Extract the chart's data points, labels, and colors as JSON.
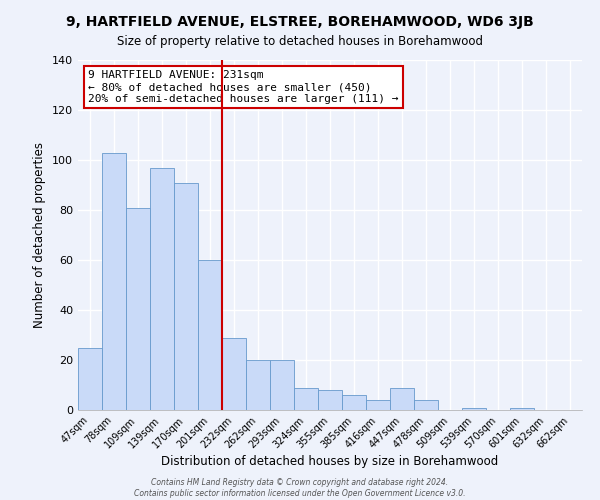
{
  "title": "9, HARTFIELD AVENUE, ELSTREE, BOREHAMWOOD, WD6 3JB",
  "subtitle": "Size of property relative to detached houses in Borehamwood",
  "xlabel": "Distribution of detached houses by size in Borehamwood",
  "ylabel": "Number of detached properties",
  "bar_labels": [
    "47sqm",
    "78sqm",
    "109sqm",
    "139sqm",
    "170sqm",
    "201sqm",
    "232sqm",
    "262sqm",
    "293sqm",
    "324sqm",
    "355sqm",
    "385sqm",
    "416sqm",
    "447sqm",
    "478sqm",
    "509sqm",
    "539sqm",
    "570sqm",
    "601sqm",
    "632sqm",
    "662sqm"
  ],
  "bar_values": [
    25,
    103,
    81,
    97,
    91,
    60,
    29,
    20,
    20,
    9,
    8,
    6,
    4,
    9,
    4,
    0,
    1,
    0,
    1,
    0,
    0
  ],
  "bar_color": "#c9daf8",
  "bar_edge_color": "#6699cc",
  "highlight_index": 6,
  "highlight_color": "#cc0000",
  "annotation_title": "9 HARTFIELD AVENUE: 231sqm",
  "annotation_line1": "← 80% of detached houses are smaller (450)",
  "annotation_line2": "20% of semi-detached houses are larger (111) →",
  "annotation_box_color": "#ffffff",
  "annotation_box_edge": "#cc0000",
  "ylim": [
    0,
    140
  ],
  "yticks": [
    0,
    20,
    40,
    60,
    80,
    100,
    120,
    140
  ],
  "bg_color": "#eef2fb",
  "footer1": "Contains HM Land Registry data © Crown copyright and database right 2024.",
  "footer2": "Contains public sector information licensed under the Open Government Licence v3.0."
}
